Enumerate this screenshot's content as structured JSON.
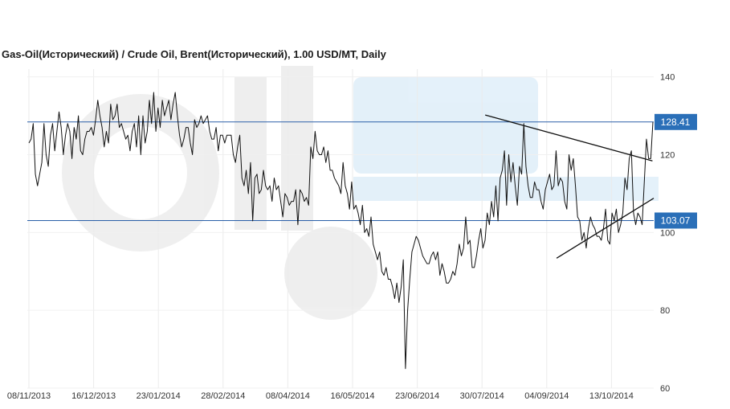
{
  "chart_data": {
    "type": "line",
    "title": "Gas-Oil(Исторический) / Crude Oil, Brent(Исторический), 1.00 USD/MT, Daily",
    "ylim": [
      60,
      142
    ],
    "yticks": [
      60,
      80,
      100,
      120,
      140
    ],
    "x_tick_labels": [
      "08/11/2013",
      "16/12/2013",
      "23/01/2014",
      "28/02/2014",
      "08/04/2014",
      "16/05/2014",
      "23/06/2014",
      "30/07/2014",
      "04/09/2014",
      "13/10/2014"
    ],
    "grid": true,
    "horizontal_levels": [
      {
        "value": 128.41,
        "label": "128.41"
      },
      {
        "value": 103.07,
        "label": "103.07"
      }
    ],
    "trendlines": [
      {
        "from": [
          0.731,
          130.2
        ],
        "to": [
          0.998,
          118.4
        ]
      },
      {
        "from": [
          0.845,
          93.4
        ],
        "to": [
          1.0,
          108.8
        ]
      }
    ],
    "series": [
      {
        "values": [
          123,
          124,
          128,
          115,
          112,
          115,
          118,
          128,
          120,
          117,
          125,
          128,
          121,
          126,
          131,
          127,
          120,
          125,
          128,
          126,
          119,
          127,
          124,
          130,
          121,
          120,
          124,
          126,
          126,
          127,
          125,
          129,
          134,
          130,
          127,
          122,
          126,
          123,
          133,
          129,
          130,
          133,
          127,
          128,
          126,
          124,
          125,
          121,
          126,
          128,
          122,
          130,
          120,
          130,
          123,
          126,
          134,
          128,
          136,
          126,
          132,
          127,
          134,
          130,
          132,
          134,
          129,
          133,
          136,
          130,
          125,
          122,
          124,
          127,
          127,
          123,
          120,
          129,
          127,
          128,
          130,
          128,
          129,
          130,
          126,
          124,
          124,
          127,
          121,
          125,
          125,
          123,
          125,
          125,
          125,
          120,
          118,
          122,
          125,
          114,
          112,
          116,
          110,
          118,
          103,
          114,
          115,
          110,
          111,
          116,
          112,
          111,
          112,
          108,
          114,
          111,
          112,
          108,
          104,
          110,
          109,
          107,
          108,
          108,
          111,
          102,
          111,
          110,
          108,
          109,
          107,
          122,
          119,
          126,
          121,
          120,
          120,
          122,
          118,
          121,
          116,
          116,
          114,
          113,
          112,
          110,
          118,
          112,
          110,
          106,
          113,
          106,
          107,
          105,
          102,
          107,
          100,
          101,
          99,
          104,
          97,
          95,
          93,
          95,
          90,
          89,
          91,
          88,
          88,
          86,
          83,
          87,
          82,
          86,
          93,
          65,
          80,
          88,
          95,
          97,
          99,
          98,
          96,
          94,
          93,
          92,
          92,
          94,
          95,
          93,
          95,
          89,
          92,
          90,
          87,
          87,
          88,
          90,
          89,
          92,
          97,
          94,
          96,
          104,
          97,
          98,
          91,
          91,
          94,
          98,
          101,
          96,
          98,
          105,
          102,
          108,
          104,
          112,
          103,
          114,
          116,
          121,
          107,
          120,
          113,
          118,
          112,
          107,
          117,
          115,
          128,
          117,
          112,
          109,
          109,
          113,
          111,
          111,
          108,
          106,
          111,
          113,
          115,
          111,
          112,
          121,
          112,
          114,
          113,
          108,
          106,
          120,
          116,
          119,
          112,
          104,
          103,
          98,
          100,
          96,
          101,
          104,
          102,
          101,
          99,
          99,
          98,
          101,
          106,
          98,
          97,
          105,
          103,
          106,
          100,
          102,
          105,
          114,
          111,
          119,
          121,
          105,
          102,
          105,
          104,
          102,
          113,
          124,
          119,
          119,
          128.4
        ]
      }
    ]
  }
}
